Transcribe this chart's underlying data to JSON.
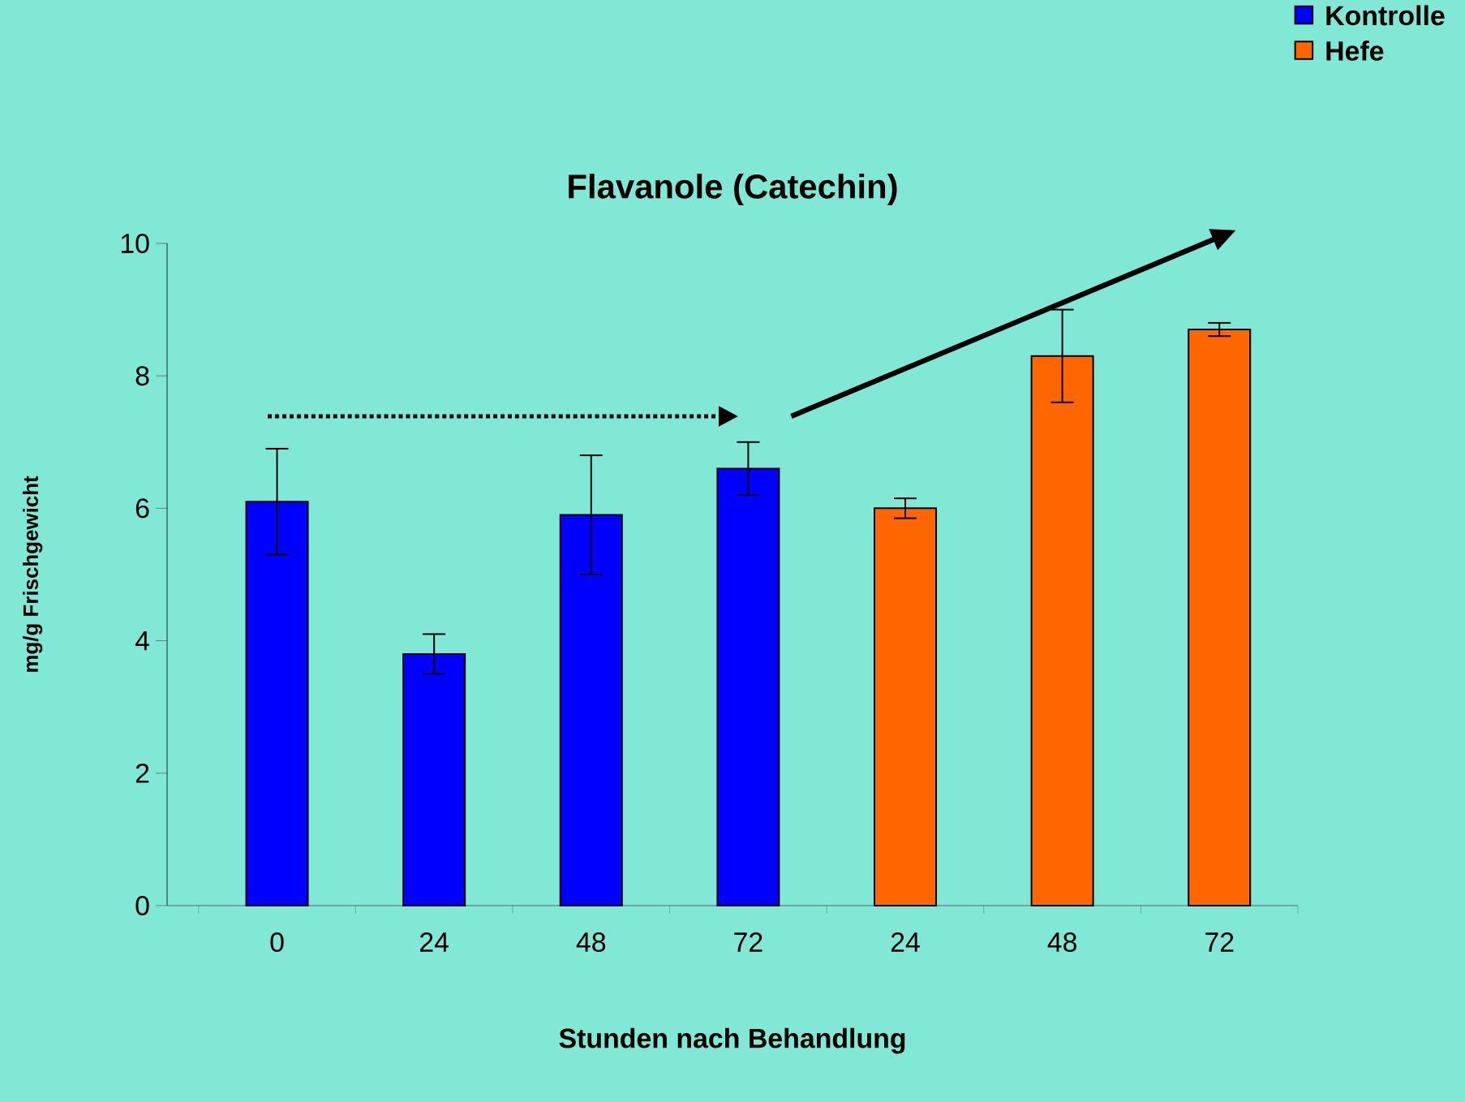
{
  "chart_data": {
    "type": "bar",
    "title": "Flavanole (Catechin)",
    "xlabel": "Stunden nach Behandlung",
    "ylabel": "mg/g Frischgewicht",
    "categories": [
      "0",
      "24",
      "48",
      "72",
      "24",
      "48",
      "72"
    ],
    "series": [
      {
        "name": "Kontrolle",
        "color": "#0000ff",
        "values": [
          6.1,
          3.8,
          5.9,
          6.6,
          null,
          null,
          null
        ],
        "errors": [
          0.8,
          0.3,
          0.9,
          0.4,
          null,
          null,
          null
        ]
      },
      {
        "name": "Hefe",
        "color": "#ff6600",
        "values": [
          null,
          null,
          null,
          null,
          6.0,
          8.3,
          8.7
        ],
        "errors": [
          null,
          null,
          null,
          null,
          0.15,
          0.7,
          0.1
        ]
      }
    ],
    "ylim": [
      0,
      10
    ],
    "yticks": [
      0,
      2,
      4,
      6,
      8,
      10
    ],
    "legend": "top right"
  }
}
